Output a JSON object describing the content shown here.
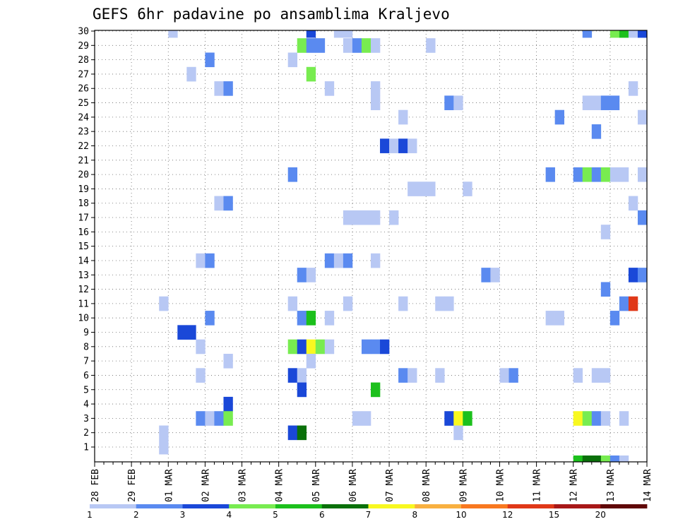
{
  "chart_data": {
    "type": "heatmap",
    "title": "GEFS 6hr padavine po ansamblima Kraljevo",
    "xlabel": "",
    "ylabel": "",
    "x_tick_labels": [
      "28 FEB",
      "29 FEB",
      "01 MAR",
      "02 MAR",
      "03 MAR",
      "04 MAR",
      "05 MAR",
      "06 MAR",
      "07 MAR",
      "08 MAR",
      "09 MAR",
      "10 MAR",
      "11 MAR",
      "12 MAR",
      "13 MAR",
      "14 MAR"
    ],
    "y_tick_labels": [
      "1",
      "2",
      "3",
      "4",
      "5",
      "6",
      "7",
      "8",
      "9",
      "10",
      "11",
      "12",
      "13",
      "14",
      "15",
      "16",
      "17",
      "18",
      "19",
      "20",
      "21",
      "22",
      "23",
      "24",
      "25",
      "26",
      "27",
      "28",
      "29",
      "30"
    ],
    "x_steps_per_day": 4,
    "x_range_steps": [
      0,
      60
    ],
    "y_range": [
      0,
      30
    ],
    "grid": true,
    "colorbar": {
      "labels": [
        "1",
        "2",
        "3",
        "4",
        "5",
        "6",
        "7",
        "8",
        "10",
        "12",
        "15",
        "20"
      ],
      "colors": [
        "#b8c8f4",
        "#5a8af0",
        "#1a48d8",
        "#78ec50",
        "#1cc01c",
        "#0a700a",
        "#f8f820",
        "#f8b040",
        "#f87820",
        "#e03818",
        "#a81818",
        "#600808"
      ]
    },
    "cells": [
      {
        "m": 30,
        "s": [
          [
            8,
            8,
            1
          ],
          [
            23,
            23,
            3
          ],
          [
            26,
            26,
            1
          ],
          [
            27,
            27,
            1
          ],
          [
            53,
            53,
            2
          ],
          [
            56,
            56,
            4
          ],
          [
            57,
            57,
            5
          ],
          [
            58,
            58,
            1
          ],
          [
            59,
            59,
            3
          ]
        ]
      },
      {
        "m": 29,
        "s": [
          [
            22,
            22,
            4
          ],
          [
            23,
            23,
            2
          ],
          [
            24,
            24,
            2
          ],
          [
            27,
            27,
            1
          ],
          [
            28,
            28,
            2
          ],
          [
            29,
            29,
            4
          ],
          [
            30,
            30,
            1
          ],
          [
            36,
            36,
            1
          ]
        ]
      },
      {
        "m": 28,
        "s": [
          [
            12,
            12,
            2
          ],
          [
            21,
            21,
            1
          ]
        ]
      },
      {
        "m": 27,
        "s": [
          [
            10,
            10,
            1
          ],
          [
            23,
            23,
            4
          ]
        ]
      },
      {
        "m": 26,
        "s": [
          [
            13,
            13,
            1
          ],
          [
            14,
            14,
            2
          ],
          [
            25,
            25,
            1
          ],
          [
            30,
            30,
            1
          ],
          [
            58,
            58,
            1
          ]
        ]
      },
      {
        "m": 25,
        "s": [
          [
            30,
            30,
            1
          ],
          [
            38,
            38,
            2
          ],
          [
            39,
            39,
            1
          ],
          [
            53,
            53,
            1
          ],
          [
            54,
            54,
            1
          ],
          [
            55,
            55,
            2
          ],
          [
            56,
            56,
            2
          ]
        ]
      },
      {
        "m": 24,
        "s": [
          [
            33,
            33,
            1
          ],
          [
            50,
            50,
            2
          ],
          [
            59,
            59,
            1
          ]
        ]
      },
      {
        "m": 23,
        "s": [
          [
            54,
            54,
            2
          ]
        ]
      },
      {
        "m": 22,
        "s": [
          [
            31,
            31,
            3
          ],
          [
            32,
            32,
            1
          ],
          [
            33,
            33,
            3
          ],
          [
            34,
            34,
            1
          ]
        ]
      },
      {
        "m": 20,
        "s": [
          [
            21,
            21,
            2
          ],
          [
            49,
            49,
            2
          ],
          [
            52,
            52,
            2
          ],
          [
            53,
            53,
            4
          ],
          [
            54,
            54,
            2
          ],
          [
            55,
            55,
            4
          ],
          [
            56,
            56,
            1
          ],
          [
            57,
            57,
            1
          ],
          [
            59,
            59,
            1
          ]
        ]
      },
      {
        "m": 19,
        "s": [
          [
            34,
            34,
            1
          ],
          [
            35,
            35,
            1
          ],
          [
            36,
            36,
            1
          ],
          [
            40,
            40,
            1
          ]
        ]
      },
      {
        "m": 18,
        "s": [
          [
            13,
            13,
            1
          ],
          [
            14,
            14,
            2
          ],
          [
            58,
            58,
            1
          ]
        ]
      },
      {
        "m": 17,
        "s": [
          [
            27,
            27,
            1
          ],
          [
            28,
            28,
            1
          ],
          [
            29,
            29,
            1
          ],
          [
            30,
            30,
            1
          ],
          [
            32,
            32,
            1
          ],
          [
            59,
            59,
            2
          ]
        ]
      },
      {
        "m": 16,
        "s": [
          [
            55,
            55,
            1
          ]
        ]
      },
      {
        "m": 14,
        "s": [
          [
            11,
            11,
            1
          ],
          [
            12,
            12,
            2
          ],
          [
            25,
            25,
            2
          ],
          [
            26,
            26,
            1
          ],
          [
            27,
            27,
            2
          ],
          [
            30,
            30,
            1
          ]
        ]
      },
      {
        "m": 13,
        "s": [
          [
            22,
            22,
            2
          ],
          [
            23,
            23,
            1
          ],
          [
            42,
            42,
            2
          ],
          [
            43,
            43,
            1
          ],
          [
            58,
            58,
            3
          ],
          [
            59,
            59,
            2
          ]
        ]
      },
      {
        "m": 12,
        "s": [
          [
            55,
            55,
            2
          ]
        ]
      },
      {
        "m": 11,
        "s": [
          [
            7,
            7,
            1
          ],
          [
            21,
            21,
            1
          ],
          [
            27,
            27,
            1
          ],
          [
            33,
            33,
            1
          ],
          [
            37,
            37,
            1
          ],
          [
            38,
            38,
            1
          ],
          [
            57,
            57,
            2
          ],
          [
            58,
            58,
            10
          ]
        ]
      },
      {
        "m": 10,
        "s": [
          [
            12,
            12,
            2
          ],
          [
            22,
            22,
            2
          ],
          [
            23,
            23,
            5
          ],
          [
            25,
            25,
            1
          ],
          [
            49,
            49,
            1
          ],
          [
            50,
            50,
            1
          ],
          [
            56,
            56,
            2
          ]
        ]
      },
      {
        "m": 9,
        "s": [
          [
            9,
            9,
            3
          ],
          [
            10,
            10,
            3
          ]
        ]
      },
      {
        "m": 8,
        "s": [
          [
            11,
            11,
            1
          ],
          [
            21,
            21,
            4
          ],
          [
            22,
            22,
            3
          ],
          [
            23,
            23,
            7
          ],
          [
            24,
            24,
            4
          ],
          [
            25,
            25,
            1
          ],
          [
            29,
            29,
            2
          ],
          [
            30,
            30,
            2
          ],
          [
            31,
            31,
            3
          ]
        ]
      },
      {
        "m": 7,
        "s": [
          [
            14,
            14,
            1
          ],
          [
            23,
            23,
            1
          ]
        ]
      },
      {
        "m": 6,
        "s": [
          [
            11,
            11,
            1
          ],
          [
            21,
            21,
            3
          ],
          [
            22,
            22,
            1
          ],
          [
            33,
            33,
            2
          ],
          [
            34,
            34,
            1
          ],
          [
            37,
            37,
            1
          ],
          [
            44,
            44,
            1
          ],
          [
            45,
            45,
            2
          ],
          [
            52,
            52,
            1
          ],
          [
            54,
            54,
            1
          ],
          [
            55,
            55,
            1
          ]
        ]
      },
      {
        "m": 5,
        "s": [
          [
            22,
            22,
            3
          ],
          [
            30,
            30,
            5
          ]
        ]
      },
      {
        "m": 4,
        "s": [
          [
            14,
            14,
            3
          ]
        ]
      },
      {
        "m": 3,
        "s": [
          [
            11,
            11,
            2
          ],
          [
            12,
            12,
            1
          ],
          [
            13,
            13,
            2
          ],
          [
            14,
            14,
            4
          ],
          [
            28,
            28,
            1
          ],
          [
            29,
            29,
            1
          ],
          [
            38,
            38,
            3
          ],
          [
            39,
            39,
            7
          ],
          [
            40,
            40,
            5
          ],
          [
            52,
            52,
            7
          ],
          [
            53,
            53,
            4
          ],
          [
            54,
            54,
            2
          ],
          [
            55,
            55,
            1
          ],
          [
            57,
            57,
            1
          ]
        ]
      },
      {
        "m": 2,
        "s": [
          [
            7,
            7,
            1
          ],
          [
            21,
            21,
            3
          ],
          [
            22,
            22,
            6
          ],
          [
            39,
            39,
            1
          ]
        ]
      },
      {
        "m": 1,
        "s": [
          [
            7,
            7,
            1
          ]
        ]
      },
      {
        "m": 0,
        "s": [
          [
            52,
            52,
            5
          ],
          [
            53,
            53,
            6
          ],
          [
            54,
            54,
            6
          ],
          [
            55,
            55,
            4
          ],
          [
            56,
            56,
            2
          ],
          [
            57,
            57,
            1
          ]
        ]
      }
    ]
  }
}
